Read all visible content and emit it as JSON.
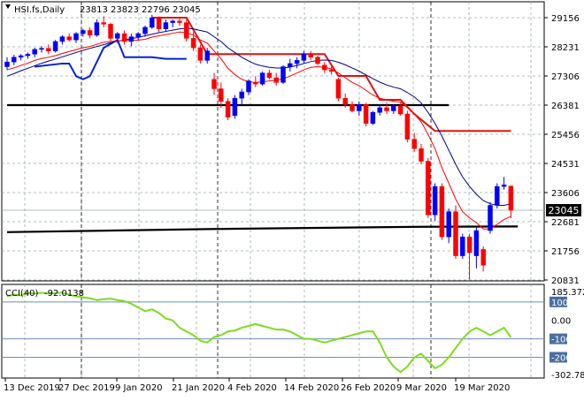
{
  "chart_data": [
    {
      "type": "candlestick",
      "header": {
        "symbol_label": "HSI.fs,Daily",
        "ohlc_text": "23813 23823 22796 23045"
      },
      "price_axis": {
        "ylim": [
          20831,
          30000
        ],
        "ticks": [
          "29156",
          "28231",
          "27306",
          "26381",
          "25456",
          "24531",
          "23606",
          "22681",
          "21756",
          "20831"
        ],
        "current_price_label": "23045"
      },
      "x_axis": {
        "ticks": [
          "13 Dec 2019",
          "27 Dec 2019",
          "9 Jan 2020",
          "21 Jan 2020",
          "4 Feb 2020",
          "14 Feb 2020",
          "26 Feb 2020",
          "9 Mar 2020",
          "19 Mar 2020"
        ]
      },
      "colors": {
        "bull": "#0000ff",
        "bear": "#ff0000",
        "fast_ma": "#ff0000",
        "slow_ma": "#000080",
        "envelope_red": "#e01010",
        "envelope_blue": "#0022dd",
        "support": "#000000"
      },
      "candles": [
        [
          27600,
          27900,
          27500,
          27750
        ],
        [
          27750,
          27980,
          27650,
          27900
        ],
        [
          27900,
          28000,
          27800,
          27950
        ],
        [
          27950,
          28050,
          27850,
          28000
        ],
        [
          28000,
          28200,
          27900,
          28150
        ],
        [
          28150,
          28250,
          28050,
          28180
        ],
        [
          28180,
          28300,
          28000,
          28100
        ],
        [
          28100,
          28450,
          28050,
          28400
        ],
        [
          28400,
          28600,
          28300,
          28550
        ],
        [
          28550,
          28650,
          28400,
          28450
        ],
        [
          28450,
          28700,
          28350,
          28650
        ],
        [
          28650,
          28800,
          28550,
          28750
        ],
        [
          28750,
          28850,
          28500,
          28600
        ],
        [
          28600,
          29100,
          28550,
          29000
        ],
        [
          29000,
          29200,
          28850,
          28950
        ],
        [
          28950,
          29000,
          28400,
          28500
        ],
        [
          28500,
          28700,
          28350,
          28650
        ],
        [
          28650,
          28750,
          28300,
          28400
        ],
        [
          28400,
          28650,
          28250,
          28550
        ],
        [
          28550,
          28700,
          28450,
          28650
        ],
        [
          28650,
          28900,
          28550,
          28850
        ],
        [
          28850,
          29250,
          28800,
          29150
        ],
        [
          29150,
          29200,
          28700,
          28800
        ],
        [
          28800,
          29100,
          28700,
          29000
        ],
        [
          29000,
          29100,
          28850,
          29050
        ],
        [
          29050,
          29150,
          28900,
          29000
        ],
        [
          29000,
          29100,
          28400,
          28500
        ],
        [
          28500,
          28700,
          28100,
          28200
        ],
        [
          28200,
          28300,
          27700,
          27800
        ],
        [
          27800,
          28200,
          27700,
          28100
        ],
        [
          27200,
          27400,
          26700,
          26900
        ],
        [
          26900,
          27100,
          26300,
          26500
        ],
        [
          26500,
          26600,
          25900,
          26000
        ],
        [
          26050,
          26700,
          25950,
          26600
        ],
        [
          26600,
          26900,
          26400,
          26800
        ],
        [
          26800,
          27200,
          26700,
          27150
        ],
        [
          27100,
          27300,
          26950,
          27050
        ],
        [
          27050,
          27450,
          27000,
          27400
        ],
        [
          27400,
          27500,
          27200,
          27250
        ],
        [
          27250,
          27400,
          27000,
          27100
        ],
        [
          27100,
          27650,
          27050,
          27600
        ],
        [
          27600,
          27850,
          27450,
          27700
        ],
        [
          27700,
          27900,
          27550,
          27800
        ],
        [
          27800,
          28100,
          27700,
          28000
        ],
        [
          28000,
          28100,
          27800,
          27900
        ],
        [
          27900,
          27950,
          27650,
          27700
        ],
        [
          27650,
          27750,
          27400,
          27500
        ],
        [
          27500,
          27600,
          27350,
          27450
        ],
        [
          27200,
          27250,
          26500,
          26600
        ],
        [
          26600,
          26750,
          26300,
          26400
        ],
        [
          26400,
          26500,
          26150,
          26200
        ],
        [
          26200,
          26500,
          26050,
          26400
        ],
        [
          26400,
          26450,
          25700,
          25800
        ],
        [
          25800,
          26200,
          25750,
          26150
        ],
        [
          26150,
          26400,
          26050,
          26300
        ],
        [
          26300,
          26450,
          26100,
          26200
        ],
        [
          26200,
          26400,
          26100,
          26350
        ],
        [
          26350,
          26450,
          26050,
          26100
        ],
        [
          26100,
          26200,
          25200,
          25300
        ],
        [
          25300,
          25500,
          24900,
          25000
        ],
        [
          25000,
          25150,
          24500,
          24600
        ],
        [
          24600,
          24700,
          22800,
          22900
        ],
        [
          22900,
          23900,
          22700,
          23800
        ],
        [
          23800,
          23900,
          22100,
          22200
        ],
        [
          22200,
          23100,
          22000,
          23000
        ],
        [
          23000,
          23200,
          21500,
          21600
        ],
        [
          21600,
          22300,
          21500,
          22200
        ],
        [
          22200,
          22300,
          20850,
          21700
        ],
        [
          21600,
          22500,
          21200,
          22400
        ],
        [
          21800,
          21900,
          21100,
          21300
        ],
        [
          22400,
          23300,
          22300,
          23200
        ],
        [
          23200,
          23900,
          23100,
          23800
        ],
        [
          23800,
          24100,
          23700,
          23850
        ],
        [
          23813,
          23823,
          22796,
          23045
        ]
      ],
      "fast_ma": [
        27500,
        27560,
        27640,
        27710,
        27800,
        27860,
        27900,
        27950,
        28020,
        28080,
        28140,
        28200,
        28240,
        28310,
        28380,
        28400,
        28420,
        28430,
        28430,
        28440,
        28470,
        28540,
        28580,
        28620,
        28660,
        28700,
        28680,
        28600,
        28450,
        28350,
        28100,
        27850,
        27550,
        27350,
        27200,
        27120,
        27100,
        27120,
        27150,
        27170,
        27220,
        27300,
        27400,
        27500,
        27580,
        27600,
        27580,
        27530,
        27400,
        27250,
        27100,
        27000,
        26850,
        26700,
        26600,
        26550,
        26500,
        26480,
        26300,
        26100,
        25850,
        25450,
        25000,
        24400,
        23900,
        23400,
        23000,
        22800,
        22650,
        22450,
        22450,
        22600,
        22750,
        22850
      ],
      "slow_ma": [
        27300,
        27380,
        27470,
        27550,
        27630,
        27710,
        27780,
        27840,
        27910,
        27980,
        28050,
        28120,
        28180,
        28240,
        28300,
        28360,
        28410,
        28450,
        28490,
        28530,
        28580,
        28630,
        28680,
        28720,
        28760,
        28800,
        28820,
        28800,
        28750,
        28700,
        28550,
        28400,
        28200,
        28050,
        27900,
        27780,
        27680,
        27620,
        27580,
        27560,
        27560,
        27590,
        27640,
        27700,
        27760,
        27800,
        27810,
        27800,
        27740,
        27660,
        27560,
        27460,
        27340,
        27220,
        27110,
        27020,
        26950,
        26900,
        26780,
        26640,
        26450,
        26150,
        25800,
        25400,
        24950,
        24500,
        24100,
        23800,
        23550,
        23350,
        23250,
        23200,
        23200,
        23250
      ],
      "envelope_red_line": [
        [
          21,
          29156
        ],
        [
          26,
          29156
        ],
        [
          29,
          28000
        ],
        [
          46,
          28000
        ],
        [
          48,
          27306
        ],
        [
          52,
          27306
        ],
        [
          54,
          26550
        ],
        [
          57,
          26550
        ],
        [
          59,
          26100
        ],
        [
          62,
          25560
        ],
        [
          73,
          25560
        ]
      ],
      "envelope_blue_line": [
        [
          4,
          27600
        ],
        [
          8,
          27700
        ],
        [
          9,
          27700
        ],
        [
          10,
          27300
        ],
        [
          11,
          27200
        ],
        [
          12,
          27300
        ],
        [
          14,
          28200
        ],
        [
          16,
          28450
        ],
        [
          17,
          27900
        ],
        [
          21,
          27900
        ],
        [
          23,
          27850
        ],
        [
          26,
          27850
        ]
      ],
      "support_lines": [
        {
          "points": [
            [
              0,
              26381
            ],
            [
              64,
              26381
            ]
          ]
        },
        {
          "points": [
            [
              0,
              22350
            ],
            [
              30,
              22450
            ],
            [
              60,
              22520
            ],
            [
              74,
              22530
            ]
          ]
        }
      ]
    },
    {
      "type": "line",
      "header": {
        "indicator_label": "CCI(40)",
        "indicator_value": "-92.0138"
      },
      "ylim": [
        -302.786,
        185.3722
      ],
      "axis_labels": [
        "185.3722",
        "100",
        "0.00",
        "-100",
        "-200",
        "-302.786"
      ],
      "levels": [
        100,
        -100,
        -200
      ],
      "values": [
        130,
        140,
        135,
        150,
        145,
        150,
        145,
        148,
        150,
        140,
        130,
        125,
        120,
        110,
        115,
        118,
        110,
        105,
        90,
        70,
        50,
        60,
        40,
        10,
        0,
        -40,
        -60,
        -80,
        -110,
        -120,
        -90,
        -80,
        -60,
        -55,
        -40,
        -30,
        -20,
        -30,
        -40,
        -50,
        -50,
        -60,
        -80,
        -100,
        -100,
        -110,
        -120,
        -110,
        -100,
        -90,
        -80,
        -70,
        -60,
        -60,
        -120,
        -200,
        -250,
        -280,
        -250,
        -200,
        -180,
        -220,
        -260,
        -240,
        -200,
        -150,
        -100,
        -60,
        -40,
        -60,
        -80,
        -60,
        -40,
        -92
      ]
    }
  ]
}
